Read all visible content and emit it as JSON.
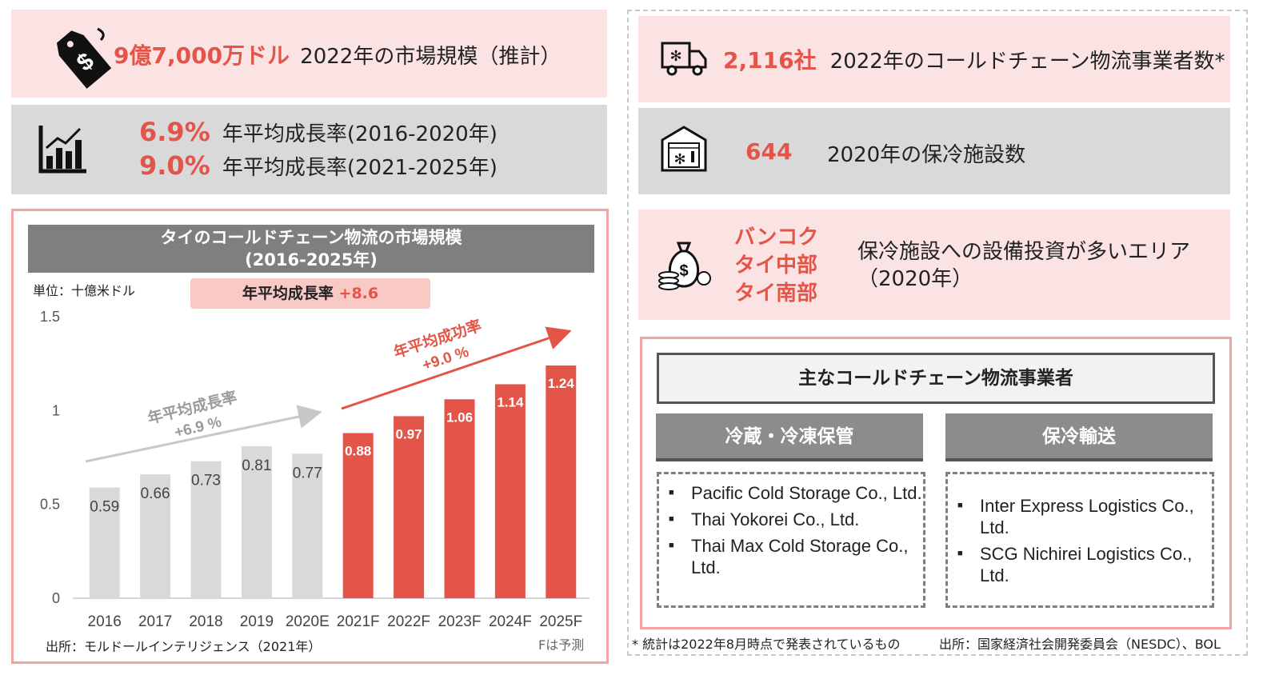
{
  "kpi_left": {
    "market_value": "9億7,000万ドル",
    "market_label": "2022年の市場規模（推計）",
    "cagr1_value": "6.9%",
    "cagr1_label": "年平均成長率(2016-2020年)",
    "cagr2_value": "9.0%",
    "cagr2_label": "年平均成長率(2021-2025年)"
  },
  "kpi_right": {
    "operators_value": "2,116社",
    "operators_label": "2022年のコールドチェーン物流事業者数*",
    "facilities_value": "644",
    "facilities_label": "2020年の保冷施設数",
    "areas": [
      "バンコク",
      "タイ中部",
      "タイ南部"
    ],
    "areas_label_line1": "保冷施設への設備投資が多いエリア",
    "areas_label_line2": "（2020年）"
  },
  "chart_data": {
    "type": "bar",
    "title": "タイのコールドチェーン物流の市場規模",
    "subtitle": "(2016-2025年)",
    "unit_label": "単位：十億米ドル",
    "badge_text": "年平均成長率",
    "badge_value": "+8.6",
    "categories": [
      "2016",
      "2017",
      "2018",
      "2019",
      "2020E",
      "2021F",
      "2022F",
      "2023F",
      "2024F",
      "2025F"
    ],
    "values": [
      0.59,
      0.66,
      0.73,
      0.81,
      0.77,
      0.88,
      0.97,
      1.06,
      1.14,
      1.24
    ],
    "highlight_from_index": 5,
    "y_ticks": [
      "0",
      "0.5",
      "1",
      "1.5"
    ],
    "ylim": [
      0,
      1.5
    ],
    "colors": {
      "past": "#d9d9d9",
      "forecast": "#e25548"
    },
    "annotation_past": {
      "line1": "年平均成長率",
      "line2": "+6.9 %"
    },
    "annotation_forecast": {
      "line1": "年平均成功率",
      "line2": "+9.0 %"
    },
    "source": "出所：モルドールインテリジェンス（2021年）",
    "forecast_note": "Fは予測"
  },
  "operators_box": {
    "title": "主なコールドチェーン物流事業者",
    "col1_title": "冷蔵・冷凍保管",
    "col1_items": [
      "Pacific Cold Storage Co., Ltd.",
      "Thai Yokorei Co., Ltd.",
      "Thai Max Cold Storage Co., Ltd."
    ],
    "col2_title": "保冷輸送",
    "col2_items": [
      "Inter Express Logistics Co., Ltd.",
      "SCG Nichirei Logistics Co., Ltd."
    ]
  },
  "footer": {
    "note": "* 統計は2022年8月時点で発表されているもの",
    "source": "出所：国家経済社会開発委員会（NESDC）、BOL"
  },
  "icons": [
    "price-tag-icon",
    "bar-chart-icon",
    "refrigerated-truck-icon",
    "cold-storage-icon",
    "money-bag-icon"
  ]
}
